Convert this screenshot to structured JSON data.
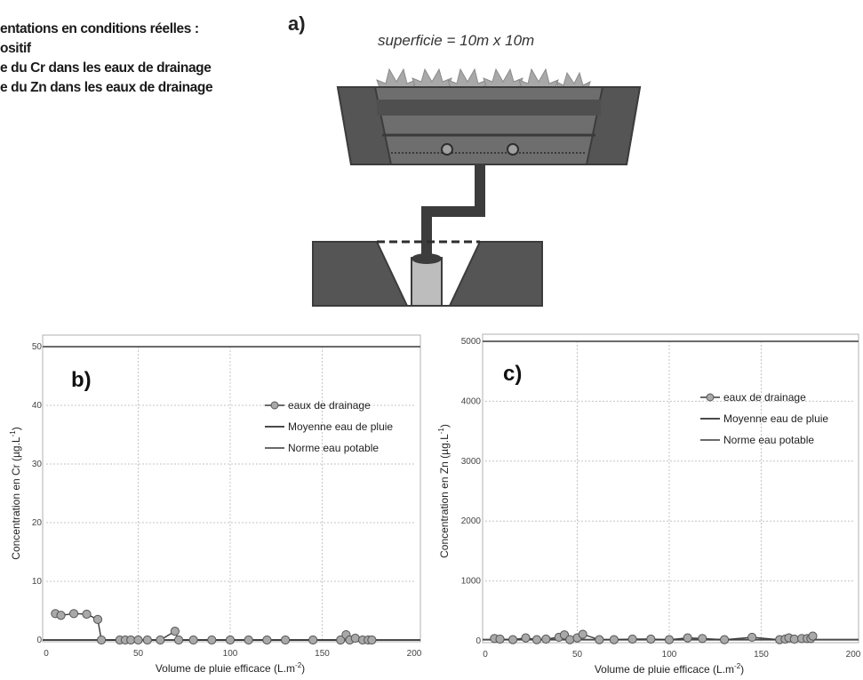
{
  "caption": {
    "lines": [
      "entations en conditions réelles :",
      "ositif",
      "e du Cr dans les eaux de drainage",
      "e du Zn dans les eaux de drainage"
    ]
  },
  "diagram": {
    "panel_label": "a)",
    "surface_text": "superficie = 10m x 10m",
    "colors": {
      "dark": "#555555",
      "mid": "#6e6e6e",
      "pipe": "#3c3c3c",
      "cylinder": "#bdbdbd",
      "plants": "#a8a8a8"
    }
  },
  "chart_data": [
    {
      "type": "line",
      "panel_label": "b)",
      "xlabel": "Volume de pluie efficace (L.m",
      "xlabel_sup": "-2",
      "xlabel_end": ")",
      "ylabel": "Concentration en Cr (µg.L",
      "ylabel_sup": "-1",
      "ylabel_end": ")",
      "xlim": [
        0,
        200
      ],
      "ylim": [
        0,
        50
      ],
      "xticks": [
        "0",
        "50",
        "100",
        "150",
        "200"
      ],
      "yticks": [
        "0",
        "10",
        "20",
        "30",
        "40",
        "50"
      ],
      "grid": true,
      "legend_position": "top-right",
      "legend": [
        "eaux de drainage",
        "Moyenne eau de pluie",
        "Norme eau potable"
      ],
      "series": [
        {
          "name": "eaux de drainage",
          "marker": "circle",
          "color": "#a9a9a9",
          "x": [
            5,
            8,
            15,
            22,
            28,
            30,
            40,
            43,
            46,
            50,
            55,
            62,
            70,
            72,
            80,
            90,
            100,
            110,
            120,
            130,
            145,
            160,
            163,
            165,
            168,
            172,
            175,
            177
          ],
          "y": [
            4.5,
            4.2,
            4.5,
            4.4,
            3.5,
            0,
            0,
            0,
            0,
            0,
            0,
            0,
            1.5,
            0,
            0,
            0,
            0,
            0,
            0,
            0,
            0,
            0,
            0.9,
            0,
            0.3,
            0,
            0,
            0
          ]
        },
        {
          "name": "Moyenne eau de pluie",
          "color": "#4a4a4a",
          "y_const": 0
        },
        {
          "name": "Norme eau potable",
          "color": "#6a6a6a",
          "y_const": 50
        }
      ]
    },
    {
      "type": "line",
      "panel_label": "c)",
      "xlabel": "Volume de pluie efficace (L.m",
      "xlabel_sup": "-2",
      "xlabel_end": ")",
      "ylabel": "Concentration en Zn (µg.L",
      "ylabel_sup": "-1",
      "ylabel_end": ")",
      "xlim": [
        0,
        200
      ],
      "ylim": [
        0,
        5000
      ],
      "xticks": [
        "0",
        "50",
        "100",
        "150",
        "200"
      ],
      "yticks": [
        "0",
        "1000",
        "2000",
        "3000",
        "4000",
        "5000"
      ],
      "grid": true,
      "legend_position": "top-right",
      "legend": [
        "eaux de drainage",
        "Moyenne eau de pluie",
        "Norme eau potable"
      ],
      "series": [
        {
          "name": "eaux de drainage",
          "marker": "circle",
          "color": "#a9a9a9",
          "x": [
            5,
            8,
            15,
            22,
            28,
            33,
            40,
            43,
            46,
            50,
            53,
            62,
            70,
            80,
            90,
            100,
            110,
            118,
            130,
            145,
            160,
            163,
            165,
            168,
            172,
            175,
            177,
            178
          ],
          "y": [
            40,
            30,
            20,
            50,
            20,
            30,
            60,
            100,
            20,
            50,
            110,
            20,
            20,
            30,
            30,
            20,
            50,
            40,
            20,
            60,
            20,
            30,
            50,
            30,
            40,
            40,
            40,
            80
          ]
        },
        {
          "name": "Moyenne eau de pluie",
          "color": "#4a4a4a",
          "y_const": 20
        },
        {
          "name": "Norme eau potable",
          "color": "#6a6a6a",
          "y_const": 5000
        }
      ]
    }
  ]
}
